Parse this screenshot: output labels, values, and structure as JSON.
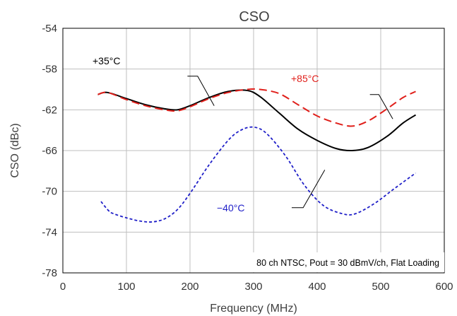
{
  "chart_data": {
    "type": "line",
    "title": "CSO",
    "xlabel": "Frequency (MHz)",
    "ylabel": "CSO (dBc)",
    "xlim": [
      0,
      600
    ],
    "ylim": [
      -78,
      -54
    ],
    "xticks": [
      "0",
      "100",
      "200",
      "300",
      "400",
      "500",
      "600"
    ],
    "yticks": [
      "-54",
      "-58",
      "-62",
      "-66",
      "-70",
      "-74",
      "-78"
    ],
    "grid": true,
    "note": "80 ch NTSC, Pout = 30 dBmV/ch, Flat Loading",
    "series": [
      {
        "name": "+35°C",
        "color": "#000000",
        "dash": "solid",
        "x": [
          55,
          70,
          100,
          130,
          160,
          180,
          200,
          230,
          260,
          290,
          310,
          340,
          370,
          400,
          430,
          455,
          480,
          510,
          535,
          555
        ],
        "y": [
          -60.5,
          -60.3,
          -60.9,
          -61.5,
          -61.9,
          -62.0,
          -61.6,
          -60.8,
          -60.2,
          -60.1,
          -60.7,
          -62.3,
          -63.9,
          -65.0,
          -65.8,
          -66.0,
          -65.7,
          -64.6,
          -63.3,
          -62.5
        ]
      },
      {
        "name": "+85°C",
        "color": "#e0201b",
        "dash": "dashed",
        "x": [
          55,
          70,
          100,
          130,
          160,
          180,
          200,
          230,
          260,
          290,
          310,
          340,
          370,
          400,
          430,
          455,
          480,
          510,
          535,
          555
        ],
        "y": [
          -60.5,
          -60.3,
          -61.0,
          -61.6,
          -62.0,
          -62.1,
          -61.7,
          -60.9,
          -60.3,
          -60.0,
          -60.0,
          -60.4,
          -61.5,
          -62.6,
          -63.3,
          -63.6,
          -63.1,
          -61.9,
          -60.8,
          -60.2
        ]
      },
      {
        "name": "−40°C",
        "color": "#1f1fc8",
        "dash": "dotted",
        "x": [
          60,
          72,
          80,
          100,
          120,
          140,
          160,
          180,
          200,
          230,
          260,
          280,
          300,
          320,
          350,
          380,
          410,
          440,
          460,
          490,
          520,
          555
        ],
        "y": [
          -71.0,
          -71.9,
          -72.2,
          -72.6,
          -72.9,
          -73.0,
          -72.7,
          -71.8,
          -70.2,
          -67.4,
          -65.0,
          -64.0,
          -63.7,
          -64.3,
          -66.5,
          -69.4,
          -71.4,
          -72.2,
          -72.2,
          -71.2,
          -69.8,
          -68.2
        ]
      }
    ],
    "annotations": [
      {
        "text": "+35°C",
        "color": "#000000"
      },
      {
        "text": "+85°C",
        "color": "#e0201b"
      },
      {
        "text": "−40°C",
        "color": "#1f1fc8"
      }
    ]
  }
}
